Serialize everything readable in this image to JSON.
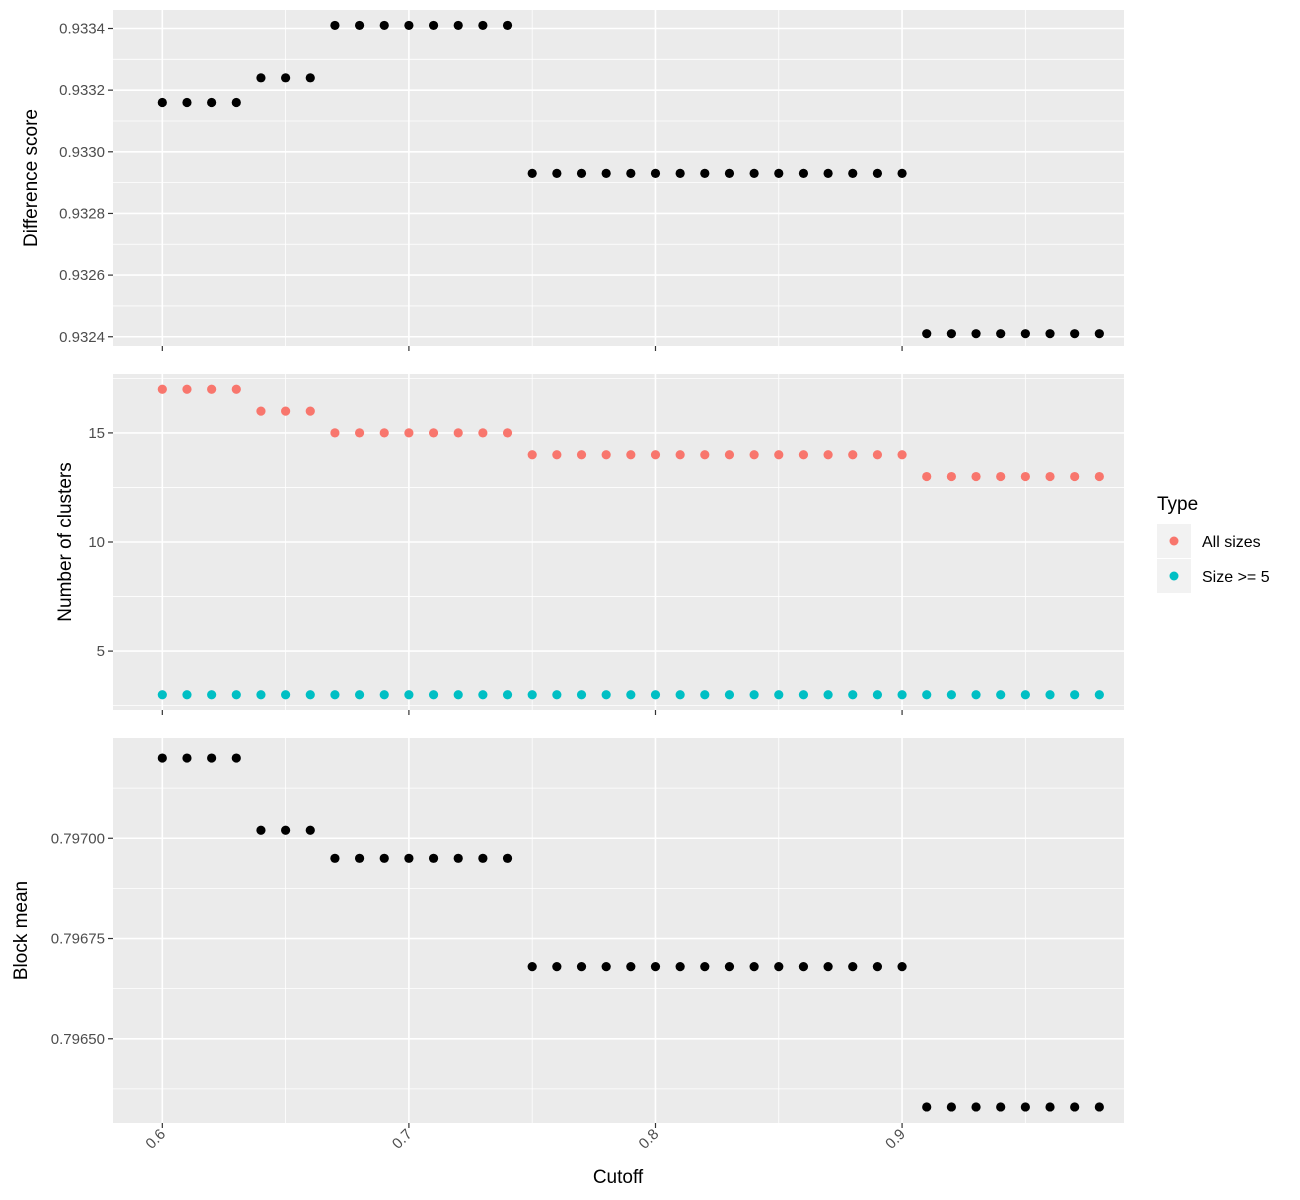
{
  "chart_data": [
    {
      "type": "scatter",
      "xlabel": "Cutoff",
      "ylabel": "Difference score",
      "xlim": [
        0.58,
        0.99
      ],
      "ylim": [
        0.93237,
        0.93346
      ],
      "x_ticks": [
        0.6,
        0.7,
        0.8,
        0.9
      ],
      "x_tick_labels": [
        "0.6",
        "0.7",
        "0.8",
        "0.9"
      ],
      "x_tick_labels_shown": false,
      "y_ticks": [
        0.9324,
        0.9326,
        0.9328,
        0.933,
        0.9332,
        0.9334
      ],
      "y_tick_labels": [
        "0.9324",
        "0.9326",
        "0.9328",
        "0.9330",
        "0.9332",
        "0.9334"
      ],
      "grid": true,
      "series": [
        {
          "color": "#000000",
          "x": [
            0.6,
            0.61,
            0.62,
            0.63,
            0.64,
            0.65,
            0.66,
            0.67,
            0.68,
            0.69,
            0.7,
            0.71,
            0.72,
            0.73,
            0.74,
            0.75,
            0.76,
            0.77,
            0.78,
            0.79,
            0.8,
            0.81,
            0.82,
            0.83,
            0.84,
            0.85,
            0.86,
            0.87,
            0.88,
            0.89,
            0.9,
            0.91,
            0.92,
            0.93,
            0.94,
            0.95,
            0.96,
            0.97,
            0.98
          ],
          "y": [
            0.93316,
            0.93316,
            0.93316,
            0.93316,
            0.93324,
            0.93324,
            0.93324,
            0.93341,
            0.93341,
            0.93341,
            0.93341,
            0.93341,
            0.93341,
            0.93341,
            0.93341,
            0.93293,
            0.93293,
            0.93293,
            0.93293,
            0.93293,
            0.93293,
            0.93293,
            0.93293,
            0.93293,
            0.93293,
            0.93293,
            0.93293,
            0.93293,
            0.93293,
            0.93293,
            0.93293,
            0.93241,
            0.93241,
            0.93241,
            0.93241,
            0.93241,
            0.93241,
            0.93241,
            0.93241
          ]
        }
      ]
    },
    {
      "type": "scatter",
      "xlabel": "Cutoff",
      "ylabel": "Number of clusters",
      "xlim": [
        0.58,
        0.99
      ],
      "ylim": [
        2.3,
        17.7
      ],
      "x_ticks": [
        0.6,
        0.7,
        0.8,
        0.9
      ],
      "x_tick_labels": [
        "0.6",
        "0.7",
        "0.8",
        "0.9"
      ],
      "x_tick_labels_shown": false,
      "y_ticks": [
        5,
        10,
        15
      ],
      "y_tick_labels": [
        "5",
        "10",
        "15"
      ],
      "grid": true,
      "legend": {
        "title": "Type",
        "placement": "right",
        "entries": [
          {
            "label": "All sizes",
            "color": "#f8766d"
          },
          {
            "label": "Size >= 5",
            "color": "#00bfc4"
          }
        ]
      },
      "series": [
        {
          "name": "All sizes",
          "color": "#f8766d",
          "x": [
            0.6,
            0.61,
            0.62,
            0.63,
            0.64,
            0.65,
            0.66,
            0.67,
            0.68,
            0.69,
            0.7,
            0.71,
            0.72,
            0.73,
            0.74,
            0.75,
            0.76,
            0.77,
            0.78,
            0.79,
            0.8,
            0.81,
            0.82,
            0.83,
            0.84,
            0.85,
            0.86,
            0.87,
            0.88,
            0.89,
            0.9,
            0.91,
            0.92,
            0.93,
            0.94,
            0.95,
            0.96,
            0.97,
            0.98
          ],
          "y": [
            17,
            17,
            17,
            17,
            16,
            16,
            16,
            15,
            15,
            15,
            15,
            15,
            15,
            15,
            15,
            14,
            14,
            14,
            14,
            14,
            14,
            14,
            14,
            14,
            14,
            14,
            14,
            14,
            14,
            14,
            14,
            13,
            13,
            13,
            13,
            13,
            13,
            13,
            13
          ]
        },
        {
          "name": "Size >= 5",
          "color": "#00bfc4",
          "x": [
            0.6,
            0.61,
            0.62,
            0.63,
            0.64,
            0.65,
            0.66,
            0.67,
            0.68,
            0.69,
            0.7,
            0.71,
            0.72,
            0.73,
            0.74,
            0.75,
            0.76,
            0.77,
            0.78,
            0.79,
            0.8,
            0.81,
            0.82,
            0.83,
            0.84,
            0.85,
            0.86,
            0.87,
            0.88,
            0.89,
            0.9,
            0.91,
            0.92,
            0.93,
            0.94,
            0.95,
            0.96,
            0.97,
            0.98
          ],
          "y": [
            3,
            3,
            3,
            3,
            3,
            3,
            3,
            3,
            3,
            3,
            3,
            3,
            3,
            3,
            3,
            3,
            3,
            3,
            3,
            3,
            3,
            3,
            3,
            3,
            3,
            3,
            3,
            3,
            3,
            3,
            3,
            3,
            3,
            3,
            3,
            3,
            3,
            3,
            3
          ]
        }
      ]
    },
    {
      "type": "scatter",
      "xlabel": "Cutoff",
      "ylabel": "Block mean",
      "xlim": [
        0.58,
        0.99
      ],
      "ylim": [
        0.79629,
        0.79725
      ],
      "x_ticks": [
        0.6,
        0.7,
        0.8,
        0.9
      ],
      "x_tick_labels": [
        "0.6",
        "0.7",
        "0.8",
        "0.9"
      ],
      "x_tick_labels_shown": true,
      "x_tick_label_rotation": -45,
      "y_ticks": [
        0.7965,
        0.79675,
        0.797
      ],
      "y_tick_labels": [
        "0.79650",
        "0.79675",
        "0.79700"
      ],
      "grid": true,
      "series": [
        {
          "color": "#000000",
          "x": [
            0.6,
            0.61,
            0.62,
            0.63,
            0.64,
            0.65,
            0.66,
            0.67,
            0.68,
            0.69,
            0.7,
            0.71,
            0.72,
            0.73,
            0.74,
            0.75,
            0.76,
            0.77,
            0.78,
            0.79,
            0.8,
            0.81,
            0.82,
            0.83,
            0.84,
            0.85,
            0.86,
            0.87,
            0.88,
            0.89,
            0.9,
            0.91,
            0.92,
            0.93,
            0.94,
            0.95,
            0.96,
            0.97,
            0.98
          ],
          "y": [
            0.7972,
            0.7972,
            0.7972,
            0.7972,
            0.79702,
            0.79702,
            0.79702,
            0.79695,
            0.79695,
            0.79695,
            0.79695,
            0.79695,
            0.79695,
            0.79695,
            0.79695,
            0.79668,
            0.79668,
            0.79668,
            0.79668,
            0.79668,
            0.79668,
            0.79668,
            0.79668,
            0.79668,
            0.79668,
            0.79668,
            0.79668,
            0.79668,
            0.79668,
            0.79668,
            0.79668,
            0.79633,
            0.79633,
            0.79633,
            0.79633,
            0.79633,
            0.79633,
            0.79633,
            0.79633
          ]
        }
      ]
    }
  ]
}
